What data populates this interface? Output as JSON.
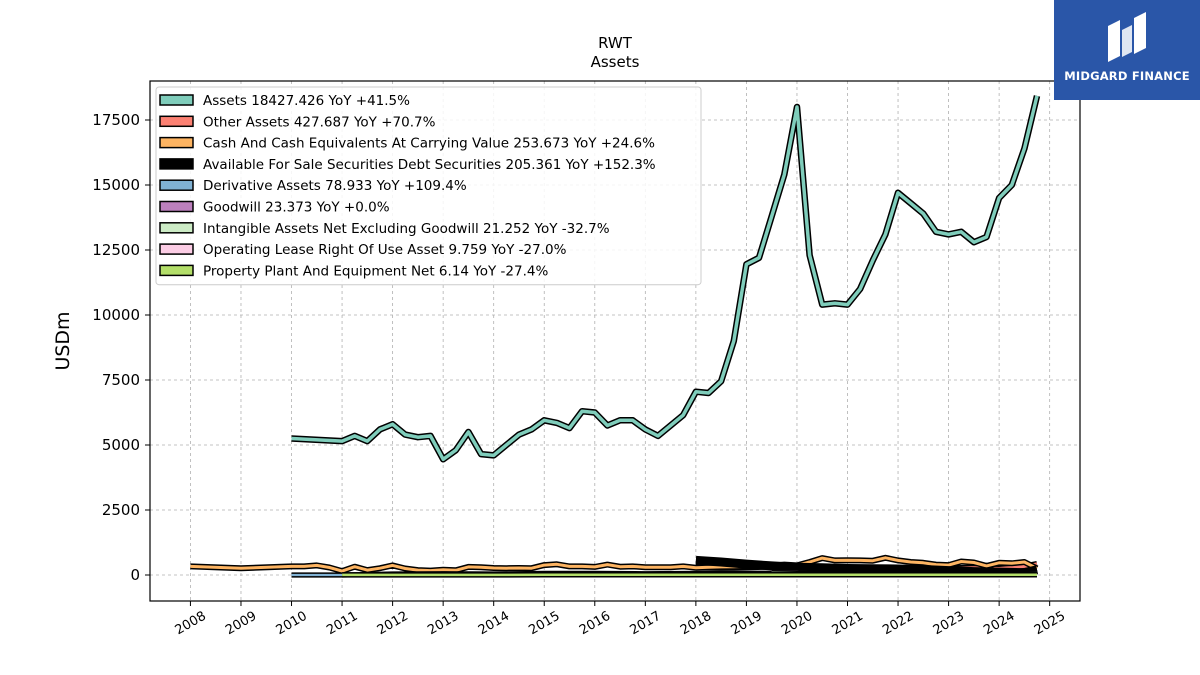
{
  "chart_data": {
    "type": "line",
    "title": "RWT",
    "subtitle": "Assets",
    "ylabel": "USDm",
    "xlabel": "",
    "ylim": [
      -1000,
      19000
    ],
    "xlim": [
      2007.2,
      2025.6
    ],
    "yticks": [
      0,
      2500,
      5000,
      7500,
      10000,
      12500,
      15000,
      17500
    ],
    "ytick_labels": [
      "0",
      "2500",
      "5000",
      "7500",
      "10000",
      "12500",
      "15000",
      "17500"
    ],
    "xticks": [
      2008,
      2009,
      2010,
      2011,
      2012,
      2013,
      2014,
      2015,
      2016,
      2017,
      2018,
      2019,
      2020,
      2021,
      2022,
      2023,
      2024,
      2025
    ],
    "xtick_labels": [
      "2008",
      "2009",
      "2010",
      "2011",
      "2012",
      "2013",
      "2014",
      "2015",
      "2016",
      "2017",
      "2018",
      "2019",
      "2020",
      "2021",
      "2022",
      "2023",
      "2024",
      "2025"
    ],
    "grid": true,
    "legend_position": "top-left",
    "series": [
      {
        "name": "Assets  18427.426 YoY +41.5%",
        "color": "#7fcdbb",
        "x": [
          2010.0,
          2011.0,
          2011.25,
          2011.5,
          2011.75,
          2012.0,
          2012.25,
          2012.5,
          2012.75,
          2013.0,
          2013.25,
          2013.5,
          2013.75,
          2014.0,
          2014.25,
          2014.5,
          2014.75,
          2015.0,
          2015.25,
          2015.5,
          2015.75,
          2016.0,
          2016.25,
          2016.5,
          2016.75,
          2017.0,
          2017.25,
          2017.5,
          2017.75,
          2018.0,
          2018.25,
          2018.5,
          2018.75,
          2019.0,
          2019.25,
          2019.5,
          2019.75,
          2020.0,
          2020.25,
          2020.5,
          2020.75,
          2021.0,
          2021.25,
          2021.5,
          2021.75,
          2022.0,
          2022.25,
          2022.5,
          2022.75,
          2023.0,
          2023.25,
          2023.5,
          2023.75,
          2024.0,
          2024.25,
          2024.5,
          2024.75
        ],
        "values": [
          5250,
          5150,
          5350,
          5150,
          5600,
          5800,
          5400,
          5300,
          5350,
          4450,
          4800,
          5500,
          4650,
          4600,
          5000,
          5400,
          5600,
          5950,
          5850,
          5650,
          6300,
          6250,
          5750,
          5950,
          5950,
          5600,
          5350,
          5750,
          6150,
          7050,
          7000,
          7450,
          9000,
          11950,
          12200,
          13800,
          15400,
          18000,
          12300,
          10400,
          10450,
          10400,
          11000,
          12100,
          13100,
          14700,
          14300,
          13900,
          13200,
          13100,
          13200,
          12800,
          13000,
          14500,
          15000,
          16400,
          18427
        ]
      },
      {
        "name": "Other Assets  427.687 YoY +70.7%",
        "color": "#fb8072",
        "x": [
          2018.0,
          2018.5,
          2019.0,
          2019.5,
          2020.0,
          2020.5,
          2021.0,
          2021.5,
          2022.0,
          2022.5,
          2023.0,
          2023.5,
          2024.0,
          2024.5,
          2024.75
        ],
        "values": [
          300,
          280,
          300,
          320,
          350,
          300,
          280,
          270,
          260,
          260,
          260,
          280,
          250,
          330,
          428
        ]
      },
      {
        "name": "Cash And Cash Equivalents At Carrying Value  253.673 YoY +24.6%",
        "color": "#fdb462",
        "x": [
          2008.0,
          2009.0,
          2010.0,
          2010.25,
          2010.5,
          2010.75,
          2011.0,
          2011.25,
          2011.5,
          2011.75,
          2012.0,
          2012.25,
          2012.5,
          2012.75,
          2013.0,
          2013.25,
          2013.5,
          2013.75,
          2014.0,
          2014.25,
          2014.5,
          2014.75,
          2015.0,
          2015.25,
          2015.5,
          2015.75,
          2016.0,
          2016.25,
          2016.5,
          2016.75,
          2017.0,
          2017.25,
          2017.5,
          2017.75,
          2018.0,
          2018.25,
          2018.5,
          2018.75,
          2019.0,
          2019.25,
          2019.5,
          2019.75,
          2020.0,
          2020.25,
          2020.5,
          2020.75,
          2021.0,
          2021.25,
          2021.5,
          2021.75,
          2022.0,
          2022.25,
          2022.5,
          2022.75,
          2023.0,
          2023.25,
          2023.5,
          2023.75,
          2024.0,
          2024.25,
          2024.5,
          2024.75
        ],
        "values": [
          330,
          260,
          330,
          330,
          370,
          290,
          150,
          320,
          190,
          260,
          370,
          250,
          190,
          170,
          200,
          180,
          310,
          300,
          270,
          260,
          270,
          260,
          380,
          410,
          330,
          330,
          310,
          400,
          320,
          330,
          300,
          300,
          300,
          330,
          280,
          300,
          310,
          320,
          330,
          340,
          350,
          400,
          370,
          500,
          650,
          560,
          570,
          560,
          550,
          660,
          560,
          500,
          470,
          400,
          380,
          520,
          480,
          350,
          470,
          450,
          500,
          254
        ]
      },
      {
        "name": "Available For Sale Securities Debt Securities  205.361 YoY +152.3%",
        "color": "#000000",
        "x": [
          2018.0,
          2018.5,
          2019.0,
          2019.5,
          2020.0,
          2020.5,
          2021.0,
          2021.5,
          2022.0,
          2022.5,
          2023.0,
          2023.5,
          2024.0,
          2024.5,
          2024.75
        ],
        "values": [
          560,
          500,
          420,
          350,
          300,
          280,
          250,
          240,
          230,
          210,
          170,
          130,
          110,
          90,
          205
        ]
      },
      {
        "name": "Derivative Assets  78.933 YoY +109.4%",
        "color": "#80b1d3",
        "x": [
          2010.0,
          2010.5,
          2011.0,
          2012.0,
          2013.0,
          2014.0,
          2015.0,
          2016.0,
          2017.0,
          2018.0,
          2019.0,
          2020.0,
          2021.0,
          2022.0,
          2023.0,
          2024.0,
          2024.75
        ],
        "values": [
          0,
          0,
          0,
          40,
          50,
          40,
          60,
          60,
          50,
          60,
          70,
          60,
          40,
          50,
          40,
          40,
          79
        ]
      },
      {
        "name": "Goodwill  23.373 YoY +0.0%",
        "color": "#bc80bd",
        "x": [
          2019.5,
          2020.0,
          2021.0,
          2022.0,
          2023.0,
          2024.0,
          2024.75
        ],
        "values": [
          140,
          140,
          23,
          23,
          23,
          23,
          23
        ]
      },
      {
        "name": "Intangible Assets Net Excluding Goodwill  21.252 YoY -32.7%",
        "color": "#ccebc5",
        "x": [
          2019.5,
          2020.0,
          2021.0,
          2022.0,
          2023.0,
          2024.0,
          2024.75
        ],
        "values": [
          80,
          70,
          55,
          45,
          35,
          28,
          21
        ]
      },
      {
        "name": "Operating Lease Right Of Use Asset  9.759 YoY -27.0%",
        "color": "#fccde5",
        "x": [
          2019.0,
          2020.0,
          2021.0,
          2022.0,
          2023.0,
          2024.0,
          2024.75
        ],
        "values": [
          20,
          18,
          16,
          14,
          13,
          12,
          10
        ]
      },
      {
        "name": "Property Plant And Equipment Net  6.14 YoY -27.4%",
        "color": "#b3de69",
        "x": [
          2011.0,
          2013.0,
          2015.0,
          2017.0,
          2019.0,
          2021.0,
          2023.0,
          2024.75
        ],
        "values": [
          4,
          5,
          6,
          7,
          8,
          9,
          8,
          6
        ]
      }
    ]
  },
  "logo": {
    "text": "MIDGARD FINANCE",
    "background": "#2a56a8"
  }
}
